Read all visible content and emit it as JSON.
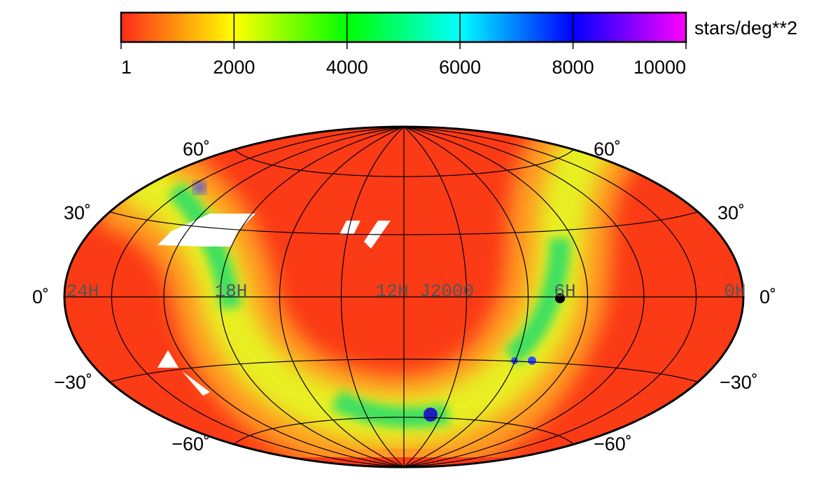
{
  "colorbar": {
    "label": "stars/deg**2",
    "range": [
      1,
      10000
    ],
    "ticks": [
      1,
      2000,
      4000,
      6000,
      8000,
      10000
    ],
    "colors": [
      "#ff2a1a",
      "#ffff00",
      "#00ff00",
      "#00ffff",
      "#0000ff",
      "#ff00ff"
    ]
  },
  "map": {
    "projection": "Hammer-Aitoff",
    "lat_labels": [
      "60˚",
      "30˚",
      "0˚",
      "−30˚",
      "−60˚"
    ],
    "ra_labels": [
      "24H",
      "18H",
      "12H J2000",
      "6H",
      "0H"
    ]
  }
}
